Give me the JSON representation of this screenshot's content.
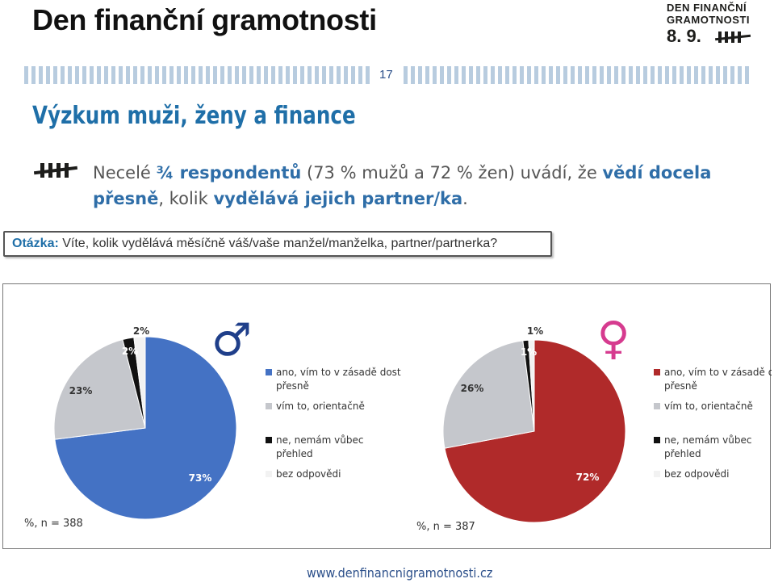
{
  "header": {
    "title": "Den finanční gramotnosti",
    "page_number": "17",
    "logo": {
      "line1": "DEN FINANČNÍ",
      "line2": "GRAMOTNOSTI",
      "line3": "8. 9."
    }
  },
  "slide": {
    "subtitle": "Výzkum muži, ženy a finance",
    "bullet": {
      "p1": "Necelé ",
      "h1": "¾ respondentů",
      "p2": " (73 % mužů a 72 % žen) uvádí, že ",
      "h2": "vědí docela přesně",
      "p3": ", kolik ",
      "h3": "vyd­ělává jejich partner/ka",
      "p4": "."
    },
    "question": {
      "label": "Otázka:",
      "text": " Víte, kolik vydělává měsíčně váš/vaše manžel/manželka, partner/partnerka?"
    }
  },
  "footer": {
    "url": "www.denfinancnigramotnosti.cz"
  },
  "colors": {
    "men_main": "#4472c4",
    "women_main": "#b02a2a",
    "approx": "#c5c7cc",
    "no_overview": "#111111",
    "no_answer": "#f2f2f2",
    "accent": "#1f6fa8"
  },
  "legend": [
    "ano, vím to v zásadě dost přesně",
    "vím to, orientačně",
    "ne, nemám vůbec přehled",
    "bez odpovědi"
  ],
  "chart_data": [
    {
      "type": "pie",
      "group_symbol": "♂",
      "note": "%, n = 388",
      "categories": [
        "ano, vím to v zásadě dost přesně",
        "vím to, orientačně",
        "ne, nemám vůbec přehled",
        "bez odpovědi"
      ],
      "values": [
        73,
        23,
        2,
        2
      ],
      "labels": [
        "73%",
        "23%",
        "2%",
        "2%"
      ],
      "colors": [
        "#4472c4",
        "#c5c7cc",
        "#111111",
        "#f2f2f2"
      ],
      "legend_position": "right"
    },
    {
      "type": "pie",
      "group_symbol": "♀",
      "note": "%, n = 387",
      "categories": [
        "ano, vím to v zásadě dost přesně",
        "vím to, orientačně",
        "ne, nemám vůbec přehled",
        "bez odpovědi"
      ],
      "values": [
        72,
        26,
        1,
        1
      ],
      "labels": [
        "72%",
        "26%",
        "1%",
        "1%"
      ],
      "colors": [
        "#b02a2a",
        "#c5c7cc",
        "#111111",
        "#f2f2f2"
      ],
      "legend_position": "right"
    }
  ]
}
